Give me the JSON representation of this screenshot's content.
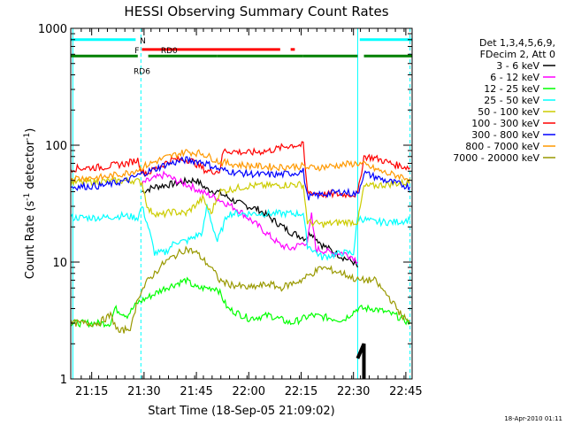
{
  "chart_data": {
    "type": "line",
    "title": "HESSI Observing Summary Count Rates",
    "xlabel": "Start Time (18-Sep-05 21:09:02)",
    "ylabel_main": "Count Rate (s",
    "ylabel_sup1": "-1",
    "ylabel_mid": " detector",
    "ylabel_sup2": "-1",
    "ylabel_end": ")",
    "y_scale": "log",
    "xlim": [
      21.15,
      22.78
    ],
    "ylim": [
      1,
      1000
    ],
    "x_ticks": [
      {
        "v": 21.25,
        "label": "21:15"
      },
      {
        "v": 21.5,
        "label": "21:30"
      },
      {
        "v": 21.75,
        "label": "21:45"
      },
      {
        "v": 22.0,
        "label": "22:00"
      },
      {
        "v": 22.25,
        "label": "22:15"
      },
      {
        "v": 22.5,
        "label": "22:30"
      },
      {
        "v": 22.75,
        "label": "22:45"
      }
    ],
    "y_ticks": [
      {
        "v": 1,
        "label": "1"
      },
      {
        "v": 10,
        "label": "10"
      },
      {
        "v": 100,
        "label": "100"
      },
      {
        "v": 1000,
        "label": "1000"
      }
    ],
    "legend_header": [
      "Det 1,3,4,5,6,9,",
      "FDecim 2, Att 0"
    ],
    "footer_date": "18-Apr-2010 01:11",
    "flags": [
      {
        "label": "N",
        "color": "#00ffff",
        "value": 800,
        "segments": [
          [
            21.15,
            21.46
          ],
          [
            22.53,
            22.78
          ]
        ],
        "label_x": 21.48
      },
      {
        "label": "F",
        "color": "#ff0000",
        "value": 660,
        "segments": [
          [
            21.49,
            22.15
          ],
          [
            22.2,
            22.22
          ]
        ],
        "label_x": 21.455
      },
      {
        "label": "RD0",
        "color": "#008000",
        "value": 580,
        "segments": [
          [
            21.15,
            21.47
          ],
          [
            21.52,
            21.85
          ],
          [
            21.85,
            22.26
          ],
          [
            22.26,
            22.52
          ],
          [
            22.55,
            22.78
          ]
        ],
        "label_x": 21.58
      },
      {
        "label": "RD6",
        "color": "#008000",
        "value": 500,
        "segments": [],
        "label_x": 21.45
      }
    ],
    "vlines": [
      {
        "x": 21.16,
        "color": "#00ffff",
        "dashed": false
      },
      {
        "x": 21.485,
        "color": "#00ffff",
        "dashed": true
      },
      {
        "x": 22.52,
        "color": "#00ffff",
        "dashed": false
      },
      {
        "x": 22.77,
        "color": "#00ffff",
        "dashed": true
      }
    ],
    "series": [
      {
        "name": "3 - 6 keV",
        "color": "#000000",
        "data": [
          [
            21.49,
            40
          ],
          [
            21.55,
            44
          ],
          [
            21.65,
            47
          ],
          [
            21.72,
            50
          ],
          [
            21.75,
            50
          ],
          [
            21.8,
            42
          ],
          [
            21.85,
            40
          ],
          [
            21.95,
            32
          ],
          [
            22.05,
            28
          ],
          [
            22.1,
            24
          ],
          [
            22.2,
            18
          ],
          [
            22.27,
            16
          ],
          [
            22.3,
            18
          ],
          [
            22.35,
            14
          ],
          [
            22.45,
            11
          ],
          [
            22.5,
            10
          ],
          [
            22.52,
            9
          ]
        ],
        "extra": [
          [
            22.52,
            1.5
          ],
          [
            22.55,
            2
          ],
          [
            22.55,
            1
          ]
        ]
      },
      {
        "name": "6 - 12 keV",
        "color": "#ff00ff",
        "data": [
          [
            21.49,
            45
          ],
          [
            21.5,
            48
          ],
          [
            21.55,
            52
          ],
          [
            21.6,
            56
          ],
          [
            21.65,
            50
          ],
          [
            21.72,
            45
          ],
          [
            21.75,
            42
          ],
          [
            21.8,
            38
          ],
          [
            21.85,
            35
          ],
          [
            21.95,
            28
          ],
          [
            22.05,
            20
          ],
          [
            22.15,
            14
          ],
          [
            22.2,
            13
          ],
          [
            22.28,
            15
          ],
          [
            22.3,
            25
          ],
          [
            22.32,
            13
          ],
          [
            22.4,
            12
          ],
          [
            22.45,
            12
          ],
          [
            22.5,
            11
          ],
          [
            22.52,
            10
          ]
        ]
      },
      {
        "name": "12 - 25 keV",
        "color": "#00ff00",
        "data": [
          [
            21.15,
            3
          ],
          [
            21.28,
            3
          ],
          [
            21.34,
            3
          ],
          [
            21.36,
            4
          ],
          [
            21.42,
            3.5
          ],
          [
            21.47,
            4.5
          ],
          [
            21.52,
            5
          ],
          [
            21.6,
            6
          ],
          [
            21.7,
            7
          ],
          [
            21.75,
            6
          ],
          [
            21.85,
            6
          ],
          [
            21.9,
            4
          ],
          [
            22.0,
            3.3
          ],
          [
            22.1,
            3.5
          ],
          [
            22.2,
            3
          ],
          [
            22.3,
            3.5
          ],
          [
            22.45,
            3.2
          ],
          [
            22.52,
            4
          ],
          [
            22.6,
            4
          ],
          [
            22.7,
            3.5
          ],
          [
            22.77,
            3
          ]
        ]
      },
      {
        "name": "25 - 50 keV",
        "color": "#00ffff",
        "data": [
          [
            21.15,
            24
          ],
          [
            21.3,
            24
          ],
          [
            21.4,
            25
          ],
          [
            21.47,
            24
          ],
          [
            21.49,
            30
          ],
          [
            21.52,
            20
          ],
          [
            21.55,
            12
          ],
          [
            21.6,
            12
          ],
          [
            21.65,
            15
          ],
          [
            21.7,
            15
          ],
          [
            21.78,
            18
          ],
          [
            21.8,
            30
          ],
          [
            21.85,
            15
          ],
          [
            21.9,
            26
          ],
          [
            22.0,
            26
          ],
          [
            22.1,
            26
          ],
          [
            22.2,
            26
          ],
          [
            22.26,
            26
          ],
          [
            22.28,
            14
          ],
          [
            22.35,
            11
          ],
          [
            22.45,
            12
          ],
          [
            22.5,
            12
          ],
          [
            22.52,
            24
          ],
          [
            22.6,
            22
          ],
          [
            22.7,
            22
          ],
          [
            22.77,
            23
          ]
        ]
      },
      {
        "name": "50 - 100 keV",
        "color": "#cccc00",
        "data": [
          [
            21.15,
            48
          ],
          [
            21.3,
            49
          ],
          [
            21.45,
            50
          ],
          [
            21.49,
            48
          ],
          [
            21.52,
            28
          ],
          [
            21.58,
            25
          ],
          [
            21.63,
            27
          ],
          [
            21.7,
            26
          ],
          [
            21.78,
            35
          ],
          [
            21.82,
            26
          ],
          [
            21.86,
            40
          ],
          [
            22.0,
            45
          ],
          [
            22.1,
            45
          ],
          [
            22.2,
            46
          ],
          [
            22.26,
            46
          ],
          [
            22.28,
            22
          ],
          [
            22.35,
            21
          ],
          [
            22.45,
            22
          ],
          [
            22.52,
            22
          ],
          [
            22.55,
            44
          ],
          [
            22.7,
            47
          ],
          [
            22.77,
            48
          ]
        ]
      },
      {
        "name": "100 - 300 keV",
        "color": "#ff0000",
        "data": [
          [
            21.15,
            63
          ],
          [
            21.3,
            65
          ],
          [
            21.42,
            70
          ],
          [
            21.47,
            75
          ],
          [
            21.49,
            60
          ],
          [
            21.52,
            58
          ],
          [
            21.63,
            75
          ],
          [
            21.72,
            75
          ],
          [
            21.8,
            60
          ],
          [
            21.86,
            60
          ],
          [
            21.88,
            90
          ],
          [
            22.0,
            86
          ],
          [
            22.1,
            90
          ],
          [
            22.2,
            100
          ],
          [
            22.26,
            100
          ],
          [
            22.28,
            40
          ],
          [
            22.35,
            38
          ],
          [
            22.45,
            38
          ],
          [
            22.52,
            38
          ],
          [
            22.55,
            80
          ],
          [
            22.6,
            78
          ],
          [
            22.7,
            68
          ],
          [
            22.77,
            64
          ]
        ]
      },
      {
        "name": "300 - 800 keV",
        "color": "#0000ff",
        "data": [
          [
            21.15,
            44
          ],
          [
            21.3,
            45
          ],
          [
            21.42,
            50
          ],
          [
            21.47,
            55
          ],
          [
            21.5,
            58
          ],
          [
            21.55,
            62
          ],
          [
            21.6,
            68
          ],
          [
            21.7,
            75
          ],
          [
            21.78,
            72
          ],
          [
            21.86,
            62
          ],
          [
            21.95,
            58
          ],
          [
            22.05,
            56
          ],
          [
            22.15,
            56
          ],
          [
            22.22,
            58
          ],
          [
            22.26,
            60
          ],
          [
            22.28,
            36
          ],
          [
            22.35,
            38
          ],
          [
            22.45,
            40
          ],
          [
            22.52,
            38
          ],
          [
            22.55,
            58
          ],
          [
            22.65,
            50
          ],
          [
            22.77,
            44
          ]
        ]
      },
      {
        "name": "800 - 7000 keV",
        "color": "#ff9900",
        "data": [
          [
            21.15,
            52
          ],
          [
            21.3,
            53
          ],
          [
            21.42,
            58
          ],
          [
            21.47,
            62
          ],
          [
            21.5,
            66
          ],
          [
            21.55,
            72
          ],
          [
            21.6,
            78
          ],
          [
            21.7,
            88
          ],
          [
            21.78,
            85
          ],
          [
            21.86,
            72
          ],
          [
            21.95,
            68
          ],
          [
            22.05,
            66
          ],
          [
            22.15,
            65
          ],
          [
            22.22,
            66
          ],
          [
            22.26,
            66
          ],
          [
            22.28,
            64
          ],
          [
            22.35,
            65
          ],
          [
            22.45,
            68
          ],
          [
            22.52,
            70
          ],
          [
            22.55,
            68
          ],
          [
            22.65,
            58
          ],
          [
            22.77,
            52
          ]
        ]
      },
      {
        "name": "7000 - 20000 keV",
        "color": "#999900",
        "data": [
          [
            21.15,
            3
          ],
          [
            21.28,
            3
          ],
          [
            21.34,
            3.5
          ],
          [
            21.38,
            2.5
          ],
          [
            21.44,
            2.8
          ],
          [
            21.47,
            5
          ],
          [
            21.52,
            7
          ],
          [
            21.6,
            10
          ],
          [
            21.7,
            13
          ],
          [
            21.75,
            12
          ],
          [
            21.82,
            9
          ],
          [
            21.86,
            7
          ],
          [
            21.9,
            6.5
          ],
          [
            22.0,
            6
          ],
          [
            22.1,
            6.5
          ],
          [
            22.15,
            6
          ],
          [
            22.25,
            7
          ],
          [
            22.35,
            9
          ],
          [
            22.45,
            8
          ],
          [
            22.52,
            7
          ],
          [
            22.6,
            7
          ],
          [
            22.67,
            5
          ],
          [
            22.73,
            3.5
          ],
          [
            22.77,
            3
          ]
        ]
      }
    ]
  }
}
